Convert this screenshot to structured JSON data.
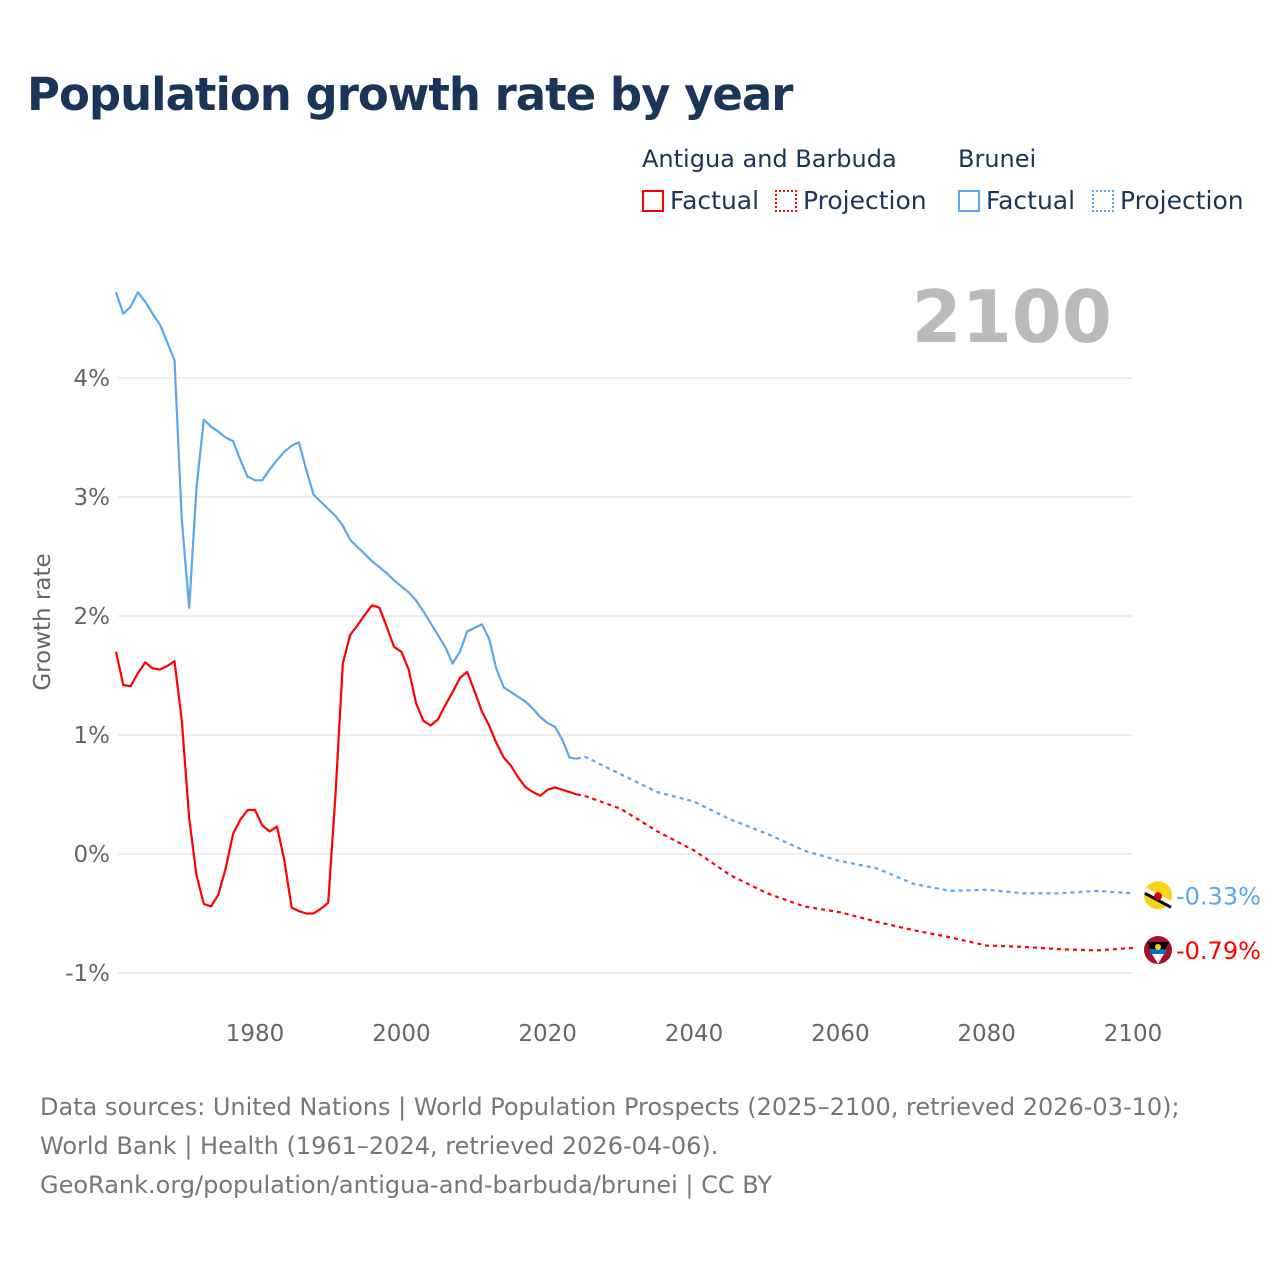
{
  "title": "Population growth rate by year",
  "legend": {
    "groups": [
      {
        "name": "Antigua and Barbuda",
        "factual": "Factual",
        "projection": "Projection",
        "color": "#ff0000"
      },
      {
        "name": "Brunei",
        "factual": "Factual",
        "projection": "Projection",
        "color": "#5ba7ec"
      }
    ]
  },
  "year_overlay": "2100",
  "footer": {
    "sources": "Data sources: United Nations | World Population Prospects (2025–2100, retrieved 2026-03-10); World Bank | Health (1961–2024, retrieved 2026-04-06).",
    "credit": "GeoRank.org/population/antigua-and-barbuda/brunei | CC BY"
  },
  "chart_data": {
    "type": "line",
    "title": "Population growth rate by year",
    "xlabel": "",
    "ylabel": "Growth rate",
    "xlim": [
      1961,
      2100
    ],
    "ylim": [
      -1.2,
      4.9
    ],
    "x_ticks": [
      1980,
      2000,
      2020,
      2040,
      2060,
      2080,
      2100
    ],
    "y_ticks": [
      -1,
      0,
      1,
      2,
      3,
      4
    ],
    "y_tick_labels": [
      "-1%",
      "0%",
      "1%",
      "2%",
      "3%",
      "4%"
    ],
    "grid": true,
    "legend_position": "top-right",
    "series": [
      {
        "name": "Antigua and Barbuda",
        "color": "#ff0000",
        "end_label": "-0.79%",
        "factual": {
          "x_start": 1961,
          "values": [
            1.7,
            1.42,
            1.41,
            1.52,
            1.61,
            1.56,
            1.55,
            1.58,
            1.62,
            1.12,
            0.3,
            -0.18,
            -0.42,
            -0.44,
            -0.34,
            -0.12,
            0.17,
            0.29,
            0.37,
            0.37,
            0.24,
            0.19,
            0.23,
            -0.05,
            -0.45,
            -0.48,
            -0.5,
            -0.5,
            -0.46,
            -0.41,
            0.5,
            1.6,
            1.84,
            1.92,
            2.01,
            2.09,
            2.07,
            1.91,
            1.74,
            1.7,
            1.55,
            1.27,
            1.12,
            1.08,
            1.13,
            1.25,
            1.36,
            1.48,
            1.53,
            1.37,
            1.2,
            1.08,
            0.93,
            0.81,
            0.74,
            0.64,
            0.56,
            0.52,
            0.49,
            0.54,
            0.56,
            0.54,
            0.52,
            0.5
          ]
        },
        "projection": {
          "x": [
            2024,
            2025,
            2030,
            2035,
            2040,
            2045,
            2050,
            2055,
            2060,
            2065,
            2070,
            2075,
            2080,
            2085,
            2090,
            2095,
            2100
          ],
          "values": [
            0.5,
            0.49,
            0.38,
            0.19,
            0.03,
            -0.18,
            -0.33,
            -0.44,
            -0.49,
            -0.57,
            -0.64,
            -0.7,
            -0.77,
            -0.78,
            -0.8,
            -0.81,
            -0.79
          ]
        }
      },
      {
        "name": "Brunei",
        "color": "#5ba7ec",
        "end_label": "-0.33%",
        "factual": {
          "x_start": 1961,
          "values": [
            4.72,
            4.54,
            4.6,
            4.72,
            4.64,
            4.54,
            4.45,
            4.3,
            4.15,
            2.81,
            2.07,
            3.08,
            3.65,
            3.59,
            3.55,
            3.5,
            3.47,
            3.31,
            3.17,
            3.14,
            3.14,
            3.23,
            3.31,
            3.38,
            3.43,
            3.46,
            3.23,
            3.02,
            2.96,
            2.9,
            2.84,
            2.76,
            2.64,
            2.58,
            2.52,
            2.46,
            2.41,
            2.36,
            2.3,
            2.25,
            2.2,
            2.13,
            2.04,
            1.94,
            1.84,
            1.74,
            1.6,
            1.7,
            1.87,
            1.9,
            1.93,
            1.81,
            1.55,
            1.4,
            1.36,
            1.32,
            1.28,
            1.22,
            1.15,
            1.1,
            1.07,
            0.96,
            0.81,
            0.8
          ]
        },
        "projection": {
          "x": [
            2024,
            2025,
            2030,
            2035,
            2040,
            2045,
            2050,
            2055,
            2060,
            2065,
            2070,
            2075,
            2080,
            2085,
            2090,
            2095,
            2100
          ],
          "values": [
            0.8,
            0.82,
            0.67,
            0.52,
            0.44,
            0.29,
            0.17,
            0.03,
            -0.06,
            -0.12,
            -0.25,
            -0.31,
            -0.3,
            -0.33,
            -0.33,
            -0.31,
            -0.33
          ]
        }
      }
    ]
  }
}
